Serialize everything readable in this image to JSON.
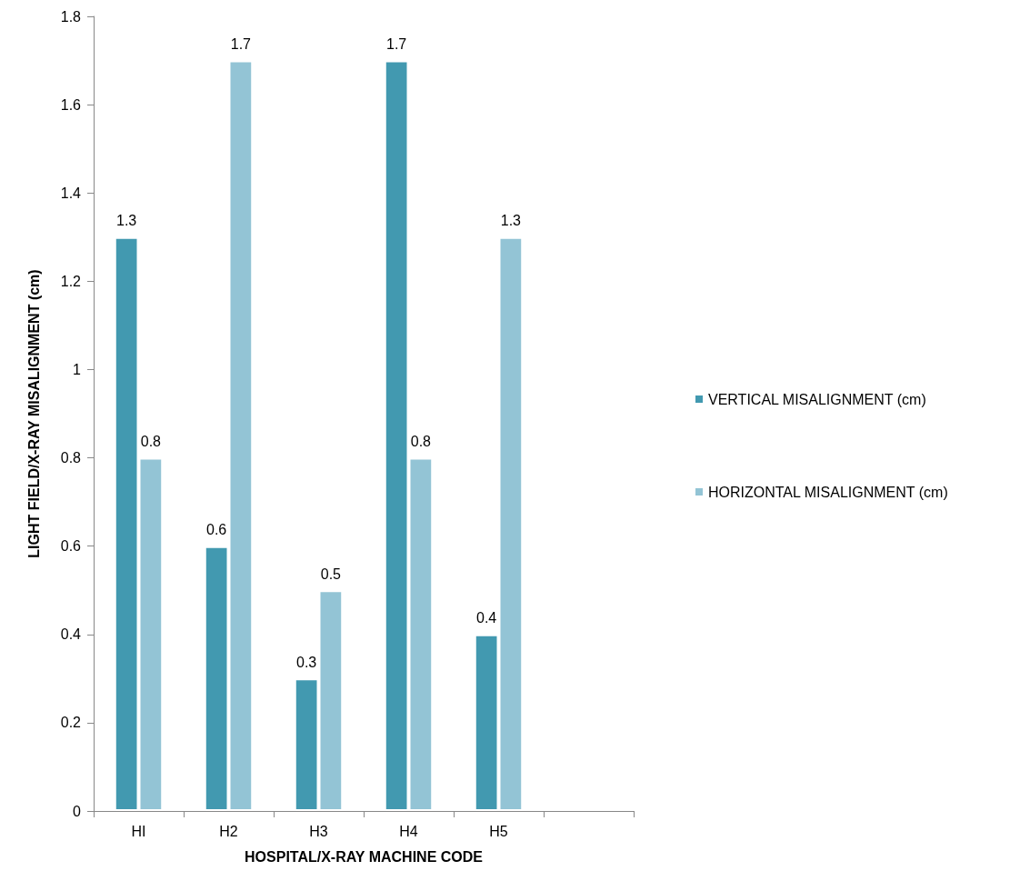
{
  "chart_data": {
    "type": "bar",
    "xlabel": "HOSPITAL/X-RAY MACHINE CODE",
    "ylabel": "LIGHT FIELD/X-RAY MISALIGNMENT (cm)",
    "categories": [
      "HI",
      "H2",
      "H3",
      "H4",
      "H5",
      null
    ],
    "series": [
      {
        "name": "VERTICAL MISALIGNMENT (cm)",
        "color": "#4299b0",
        "values": [
          1.3,
          0.6,
          0.3,
          1.7,
          0.4,
          null
        ]
      },
      {
        "name": "HORIZONTAL MISALIGNMENT (cm)",
        "color": "#93c4d5",
        "values": [
          0.8,
          1.7,
          0.5,
          0.8,
          1.3,
          null
        ]
      }
    ],
    "ylim": [
      0,
      1.8
    ],
    "yticks": [
      0,
      0.2,
      0.4,
      0.6,
      0.8,
      1,
      1.2,
      1.4,
      1.6,
      1.8
    ],
    "grid": false,
    "legend": "right",
    "data_labels": true
  }
}
